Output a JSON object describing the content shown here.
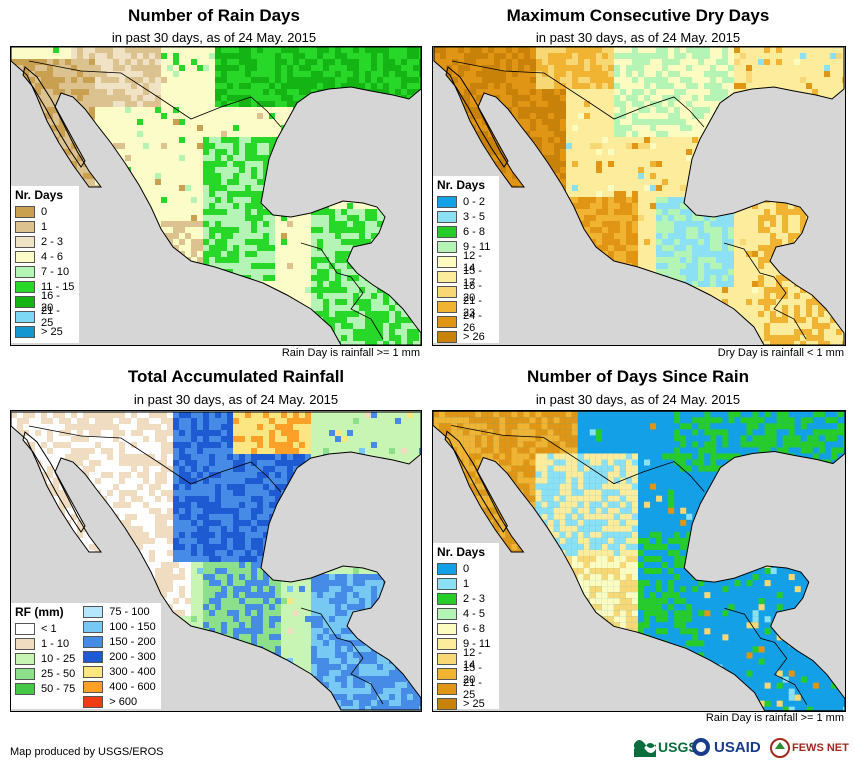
{
  "footer": {
    "credit": "Map produced by USGS/EROS"
  },
  "logos": {
    "usgs": "USGS",
    "usaid": "USAID",
    "fewsnet": "FEWS NET"
  },
  "panels": [
    {
      "title": "Number of Rain Days",
      "subtitle": "in past 30 days, as of 24 May. 2015",
      "note": "Rain Day is rainfall >= 1 mm",
      "legend": {
        "title": "Nr. Days",
        "items": [
          {
            "label": "0",
            "color": "#c8a050"
          },
          {
            "label": "1",
            "color": "#dcc28e"
          },
          {
            "label": "2 - 3",
            "color": "#f0e2c4"
          },
          {
            "label": "4 - 6",
            "color": "#fcfcc8"
          },
          {
            "label": "7 - 10",
            "color": "#b4f4b4"
          },
          {
            "label": "11 - 15",
            "color": "#28d828"
          },
          {
            "label": "16 - 20",
            "color": "#14b414"
          },
          {
            "label": "21 - 25",
            "color": "#7cd8f4"
          },
          {
            "label": "> 25",
            "color": "#1496d0"
          }
        ]
      }
    },
    {
      "title": "Maximum Consecutive Dry Days",
      "subtitle": "in past 30 days, as of 24 May. 2015",
      "note": "Dry Day is rainfall < 1 mm",
      "legend": {
        "title": "Nr. Days",
        "items": [
          {
            "label": "0 - 2",
            "color": "#14a0e6"
          },
          {
            "label": "3 - 5",
            "color": "#8ce0f4"
          },
          {
            "label": "6 - 8",
            "color": "#28cc28"
          },
          {
            "label": "9 - 11",
            "color": "#b4f4b4"
          },
          {
            "label": "12 - 14",
            "color": "#fcfcc0"
          },
          {
            "label": "15 - 17",
            "color": "#fcec9c"
          },
          {
            "label": "18 - 20",
            "color": "#f8d874"
          },
          {
            "label": "21 - 23",
            "color": "#f0b432"
          },
          {
            "label": "24 - 26",
            "color": "#e09614"
          },
          {
            "label": "> 26",
            "color": "#c8820a"
          }
        ]
      }
    },
    {
      "title": "Total Accumulated Rainfall",
      "subtitle": "in past 30 days, as of 24 May. 2015",
      "note": "",
      "legend": {
        "title": "RF (mm)",
        "items": [
          {
            "label": "< 1",
            "color": "#ffffff"
          },
          {
            "label": "1 - 10",
            "color": "#f0dcc0"
          },
          {
            "label": "10 - 25",
            "color": "#c8f4b4"
          },
          {
            "label": "25 - 50",
            "color": "#8ce08c"
          },
          {
            "label": "50 - 75",
            "color": "#46c846"
          }
        ],
        "items2": [
          {
            "label": "75 - 100",
            "color": "#b4e6fc"
          },
          {
            "label": "100 - 150",
            "color": "#78c8f4"
          },
          {
            "label": "150 - 200",
            "color": "#468ce6"
          },
          {
            "label": "200 - 300",
            "color": "#1e5ad2"
          },
          {
            "label": "300 - 400",
            "color": "#fce682"
          },
          {
            "label": "400 - 600",
            "color": "#fca028"
          },
          {
            "label": "> 600",
            "color": "#f03c14"
          }
        ]
      }
    },
    {
      "title": "Number of Days Since Rain",
      "subtitle": "in past 30 days, as of 24 May. 2015",
      "note": "Rain Day is rainfall >= 1 mm",
      "legend": {
        "title": "Nr. Days",
        "items": [
          {
            "label": "0",
            "color": "#14a0e6"
          },
          {
            "label": "1",
            "color": "#8ce0f4"
          },
          {
            "label": "2 - 3",
            "color": "#28cc28"
          },
          {
            "label": "4 - 5",
            "color": "#b4f4b4"
          },
          {
            "label": "6 - 8",
            "color": "#fcfcc0"
          },
          {
            "label": "9 - 11",
            "color": "#fcec9c"
          },
          {
            "label": "12 - 14",
            "color": "#f8d874"
          },
          {
            "label": "15 - 20",
            "color": "#f0b432"
          },
          {
            "label": "21 - 25",
            "color": "#e09614"
          },
          {
            "label": "> 25",
            "color": "#c8820a"
          }
        ]
      }
    }
  ],
  "colors": {
    "ocean": "#d6d6d6",
    "border": "#000000"
  }
}
